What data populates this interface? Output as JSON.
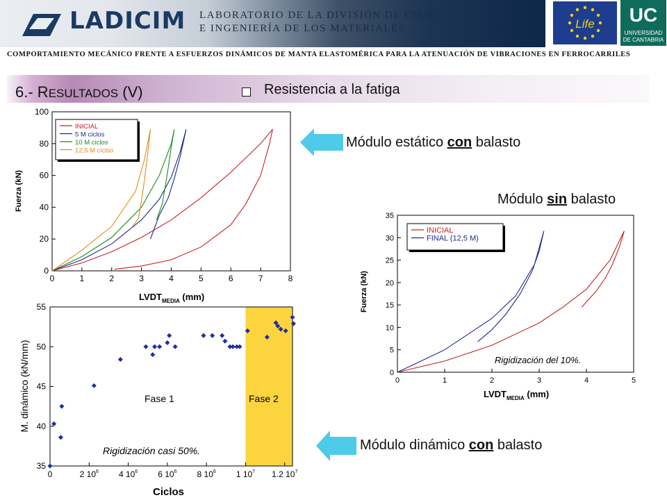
{
  "header": {
    "logo_text": "LADICIM",
    "lab_line1": "LABORATORIO DE LA DIVISIÓN DE CIENCIA",
    "lab_line2": "E INGENIERÍA DE LOS MATERIALES",
    "eu_logo": "Life",
    "uc_logo": "UC",
    "uc_line1": "UNIVERSIDAD",
    "uc_line2": "DE CANTABRIA"
  },
  "subtitle": "COMPORTAMIENTO MECÁNICO FRENTE A ESFUERZOS DINÁMICOS DE MANTA ELASTOMÉRICA PARA LA ATENUACIÓN DE VIBRACIONES EN FERROCARRILES",
  "section": {
    "number": "6.- ",
    "title_cap": "R",
    "title_rest": "ESULTADOS",
    "title_suffix": " (V)",
    "bullet_label": "Resistencia a la fatiga"
  },
  "callouts": {
    "static_pre": "Módulo estático ",
    "static_u": "con",
    "static_post": " balasto",
    "nobal_pre": "Módulo ",
    "nobal_u": "sin",
    "nobal_post": " balasto",
    "dyn_pre": "Módulo dinámico ",
    "dyn_u": "con",
    "dyn_post": " balasto"
  },
  "colors": {
    "accent_arrow": "#4ecbe8",
    "phase2_fill": "#fcd43e",
    "marker": "#1f2fa8"
  },
  "chart_data": [
    {
      "id": "static",
      "type": "line",
      "xlabel": "LVDT",
      "xlabel_sub": "MEDIA",
      "xlabel_unit": " (mm)",
      "ylabel": "Fuerza (kN)",
      "xlim": [
        0,
        8
      ],
      "ylim": [
        0,
        100
      ],
      "xticks": [
        "0",
        "1",
        "2",
        "3",
        "4",
        "5",
        "6",
        "7",
        "8"
      ],
      "yticks": [
        "0",
        "20",
        "40",
        "60",
        "80",
        "100"
      ],
      "legend": [
        "INICIAL",
        "5 M ciclos",
        "10 M ciclos",
        "12,5 M cicl­so"
      ],
      "legend_position": "top-left",
      "series": [
        {
          "name": "INICIAL",
          "color": "#c62020",
          "load": [
            [
              0,
              0
            ],
            [
              1,
              5
            ],
            [
              2,
              12
            ],
            [
              3,
              21
            ],
            [
              4,
              32
            ],
            [
              5,
              46
            ],
            [
              6,
              62
            ],
            [
              7,
              80
            ],
            [
              7.4,
              89
            ]
          ],
          "unload": [
            [
              7.4,
              89
            ],
            [
              7.3,
              80
            ],
            [
              7,
              60
            ],
            [
              6.5,
              42
            ],
            [
              6,
              29
            ],
            [
              5,
              15
            ],
            [
              4,
              7
            ],
            [
              3,
              3
            ],
            [
              2.1,
              1
            ]
          ]
        },
        {
          "name": "5 M ciclos",
          "color": "#1b2a8f",
          "load": [
            [
              0,
              0
            ],
            [
              1,
              7
            ],
            [
              2,
              17
            ],
            [
              3,
              32
            ],
            [
              3.6,
              45
            ],
            [
              4,
              59
            ],
            [
              4.3,
              75
            ],
            [
              4.5,
              89
            ]
          ],
          "unload": [
            [
              4.5,
              89
            ],
            [
              4.3,
              72
            ],
            [
              4.1,
              58
            ],
            [
              3.9,
              46
            ],
            [
              3.6,
              35
            ],
            [
              3.3,
              20
            ]
          ]
        },
        {
          "name": "10 M ciclos",
          "color": "#1c8a1c",
          "load": [
            [
              0,
              0
            ],
            [
              1,
              9
            ],
            [
              2,
              21
            ],
            [
              3,
              40
            ],
            [
              3.6,
              60
            ],
            [
              4,
              80
            ],
            [
              4.1,
              89
            ]
          ],
          "unload": [
            [
              4.1,
              89
            ],
            [
              4,
              78
            ],
            [
              3.9,
              65
            ],
            [
              3.8,
              53
            ],
            [
              3.7,
              42
            ],
            [
              3.5,
              32
            ]
          ]
        },
        {
          "name": "12,5 M ciclso",
          "color": "#e28b14",
          "load": [
            [
              0,
              0
            ],
            [
              1,
              13
            ],
            [
              2,
              28
            ],
            [
              2.8,
              50
            ],
            [
              3.1,
              70
            ],
            [
              3.3,
              89
            ]
          ],
          "unload": [
            [
              3.3,
              89
            ],
            [
              3.2,
              72
            ],
            [
              3.1,
              57
            ],
            [
              3,
              44
            ],
            [
              2.9,
              33
            ],
            [
              2.7,
              28
            ]
          ]
        }
      ]
    },
    {
      "id": "nobal",
      "type": "line",
      "xlabel": "LVDT",
      "xlabel_sub": "MEDIA",
      "xlabel_unit": " (mm)",
      "ylabel": "Fuerza (kN)",
      "xlim": [
        0,
        5
      ],
      "ylim": [
        0,
        35
      ],
      "xticks": [
        "0",
        "1",
        "2",
        "3",
        "4",
        "5"
      ],
      "yticks": [
        "0",
        "5",
        "10",
        "15",
        "20",
        "25",
        "30",
        "35"
      ],
      "legend": [
        "INICIAL",
        "FINAL (12,5 M)"
      ],
      "annotation": "Rigidización del 10%.",
      "series": [
        {
          "name": "INICIAL",
          "color": "#c62020",
          "load": [
            [
              0,
              0
            ],
            [
              1,
              2.5
            ],
            [
              2,
              6
            ],
            [
              3,
              11
            ],
            [
              3.5,
              14.5
            ],
            [
              4,
              18.5
            ],
            [
              4.5,
              25
            ],
            [
              4.8,
              31.5
            ]
          ],
          "unload": [
            [
              4.8,
              31.5
            ],
            [
              4.7,
              28
            ],
            [
              4.55,
              24
            ],
            [
              4.4,
              21
            ],
            [
              4.2,
              18
            ],
            [
              3.9,
              14.5
            ]
          ]
        },
        {
          "name": "FINAL (12,5 M)",
          "color": "#1b2a8f",
          "load": [
            [
              0,
              0
            ],
            [
              0.5,
              2.5
            ],
            [
              1,
              5
            ],
            [
              1.5,
              8.5
            ],
            [
              2,
              12
            ],
            [
              2.5,
              17
            ],
            [
              2.9,
              24
            ],
            [
              3.1,
              31.5
            ]
          ],
          "unload": [
            [
              3.1,
              31.5
            ],
            [
              3,
              27
            ],
            [
              2.85,
              22.5
            ],
            [
              2.6,
              17.5
            ],
            [
              2.3,
              13
            ],
            [
              2,
              9.5
            ],
            [
              1.7,
              6.8
            ]
          ]
        }
      ]
    },
    {
      "id": "dynamic",
      "type": "scatter",
      "xlabel": "Ciclos",
      "ylabel": "M. dinámico (kN/mm)",
      "xlim": [
        0,
        12400000
      ],
      "ylim": [
        35,
        55
      ],
      "xtick_values": [
        0,
        2000000,
        4000000,
        6000000,
        8000000,
        10000000,
        12000000
      ],
      "xtick_base": [
        "0",
        "2 10",
        "4 10",
        "6 10",
        "8 10",
        "1 10",
        "1.2 10"
      ],
      "xtick_exp": [
        "",
        "6",
        "6",
        "6",
        "6",
        "7",
        "7"
      ],
      "yticks": [
        "35",
        "40",
        "45",
        "50",
        "55"
      ],
      "phase1_label": "Fase 1",
      "phase2_label": "Fase 2",
      "phase2_start": 10000000,
      "annotation": "Rigidización casi 50%.",
      "x": [
        0,
        200000,
        550000,
        600000,
        2250000,
        3600000,
        4900000,
        5250000,
        5350000,
        5600000,
        6000000,
        6100000,
        6400000,
        7850000,
        8300000,
        8800000,
        8950000,
        9200000,
        9350000,
        9550000,
        9700000,
        10100000,
        11100000,
        11550000,
        11650000,
        11800000,
        12050000,
        12400000,
        12450000
      ],
      "y": [
        35.0,
        40.3,
        38.6,
        42.5,
        45.1,
        48.4,
        50.0,
        49.0,
        50.0,
        50.0,
        50.5,
        51.4,
        50.0,
        51.4,
        51.4,
        51.4,
        50.7,
        50.0,
        50.0,
        50.0,
        50.0,
        52.0,
        51.2,
        53.0,
        52.6,
        52.2,
        52.0,
        53.7,
        52.9
      ]
    }
  ]
}
